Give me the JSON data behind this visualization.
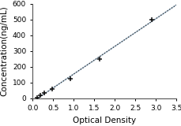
{
  "x_data": [
    0.1,
    0.18,
    0.28,
    0.47,
    0.92,
    1.62,
    2.9
  ],
  "y_data": [
    5,
    18,
    32,
    58,
    125,
    248,
    500
  ],
  "xlabel": "Optical Density",
  "ylabel": "Concentration(ng/mL)",
  "xlim": [
    0,
    3.5
  ],
  "ylim": [
    0,
    600
  ],
  "xticks": [
    0,
    0.5,
    1,
    1.5,
    2,
    2.5,
    3,
    3.5
  ],
  "yticks": [
    0,
    100,
    200,
    300,
    400,
    500,
    600
  ],
  "line_color_solid": "#a0b8cc",
  "line_color_dot": "#333333",
  "marker_color": "#111111",
  "background_color": "#ffffff",
  "tick_fontsize": 6.5,
  "label_fontsize": 7.5
}
